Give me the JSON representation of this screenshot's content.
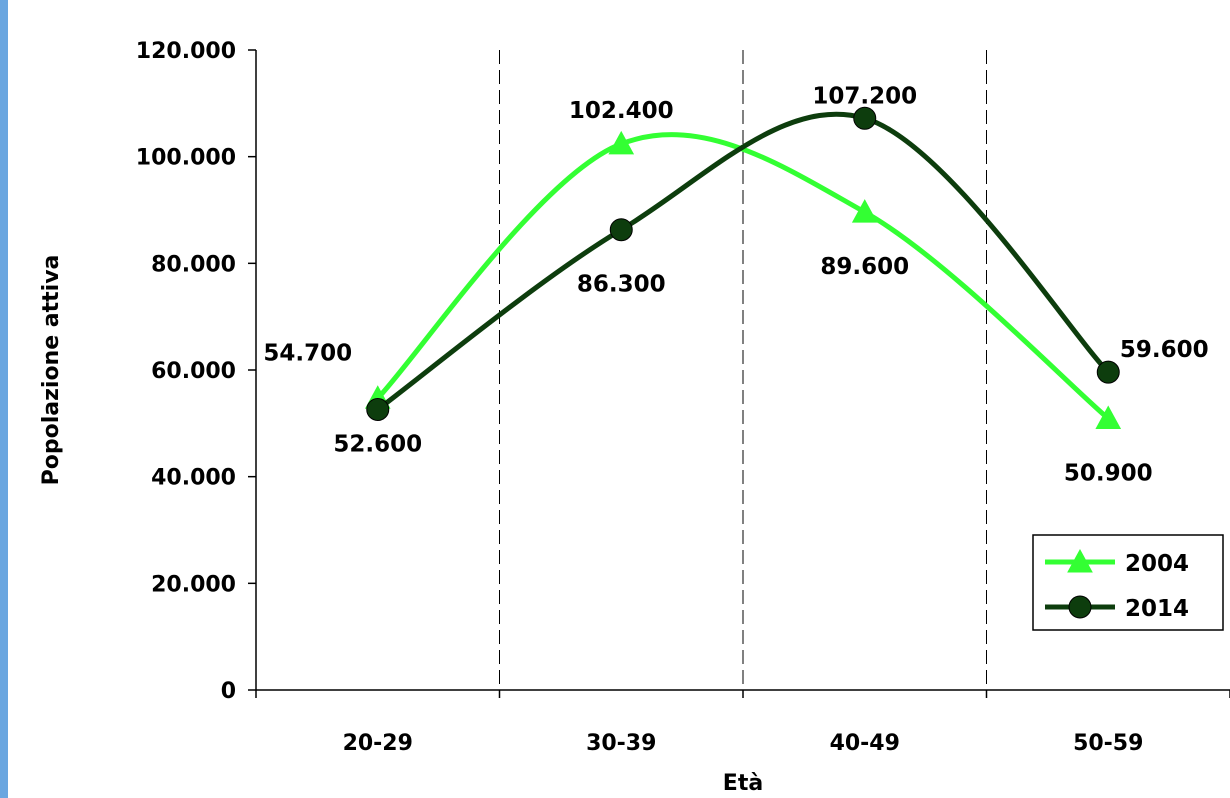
{
  "colors": {
    "background": "#6aa6e0",
    "panel": "#ffffff",
    "series_2004": "#33ff33",
    "series_2014": "#0d3d0d",
    "grid": "#000000"
  },
  "chart_data": {
    "type": "line",
    "title": "",
    "xlabel": "Età",
    "ylabel": "Popolazione attiva",
    "categories": [
      "20-29",
      "30-39",
      "40-49",
      "50-59"
    ],
    "ylim": [
      0,
      120000
    ],
    "yticks": [
      0,
      20000,
      40000,
      60000,
      80000,
      100000,
      120000
    ],
    "ytick_labels": [
      "0",
      "20.000",
      "40.000",
      "60.000",
      "80.000",
      "100.000",
      "120.000"
    ],
    "grid": "vertical dashed lines between categories",
    "smooth": true,
    "legend_position": "right",
    "series": [
      {
        "name": "2004",
        "marker": "triangle",
        "values": [
          54700,
          102400,
          89600,
          50900
        ],
        "labels": [
          "54.700",
          "102.400",
          "89.600",
          "50.900"
        ]
      },
      {
        "name": "2014",
        "marker": "circle",
        "values": [
          52600,
          86300,
          107200,
          59600
        ],
        "labels": [
          "52.600",
          "86.300",
          "107.200",
          "59.600"
        ]
      }
    ]
  }
}
